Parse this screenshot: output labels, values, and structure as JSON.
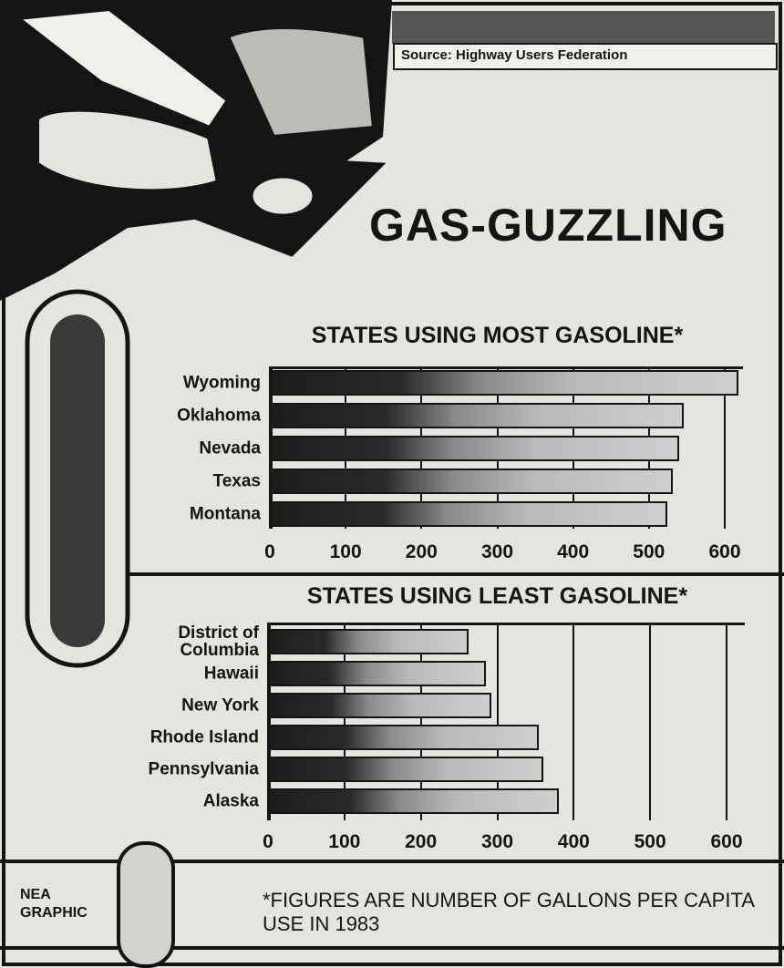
{
  "title": "GAS-GUZZLING",
  "source": "Source: Highway Users Federation",
  "credit": "NEA GRAPHIC",
  "footnote": "*FIGURES ARE NUMBER OF GALLONS PER CAPITA USE IN 1983",
  "chart_data": [
    {
      "type": "hbar",
      "title": "STATES USING MOST GASOLINE*",
      "categories": [
        "Wyoming",
        "Oklahoma",
        "Nevada",
        "Texas",
        "Montana"
      ],
      "values": [
        618,
        546,
        540,
        531,
        524
      ],
      "xlim": [
        0,
        600
      ],
      "xticks": [
        0,
        100,
        200,
        300,
        400,
        500,
        600
      ],
      "grid": true,
      "color": "#1c1c1c"
    },
    {
      "type": "hbar",
      "title": "STATES USING LEAST GASOLINE*",
      "categories": [
        "District of Columbia",
        "Hawaii",
        "New York",
        "Rhode Island",
        "Pennsylvania",
        "Alaska"
      ],
      "values": [
        263,
        285,
        292,
        354,
        360,
        381
      ],
      "xlim": [
        0,
        600
      ],
      "xticks": [
        0,
        100,
        200,
        300,
        400,
        500,
        600
      ],
      "grid": true,
      "color": "#1c1c1c"
    }
  ]
}
